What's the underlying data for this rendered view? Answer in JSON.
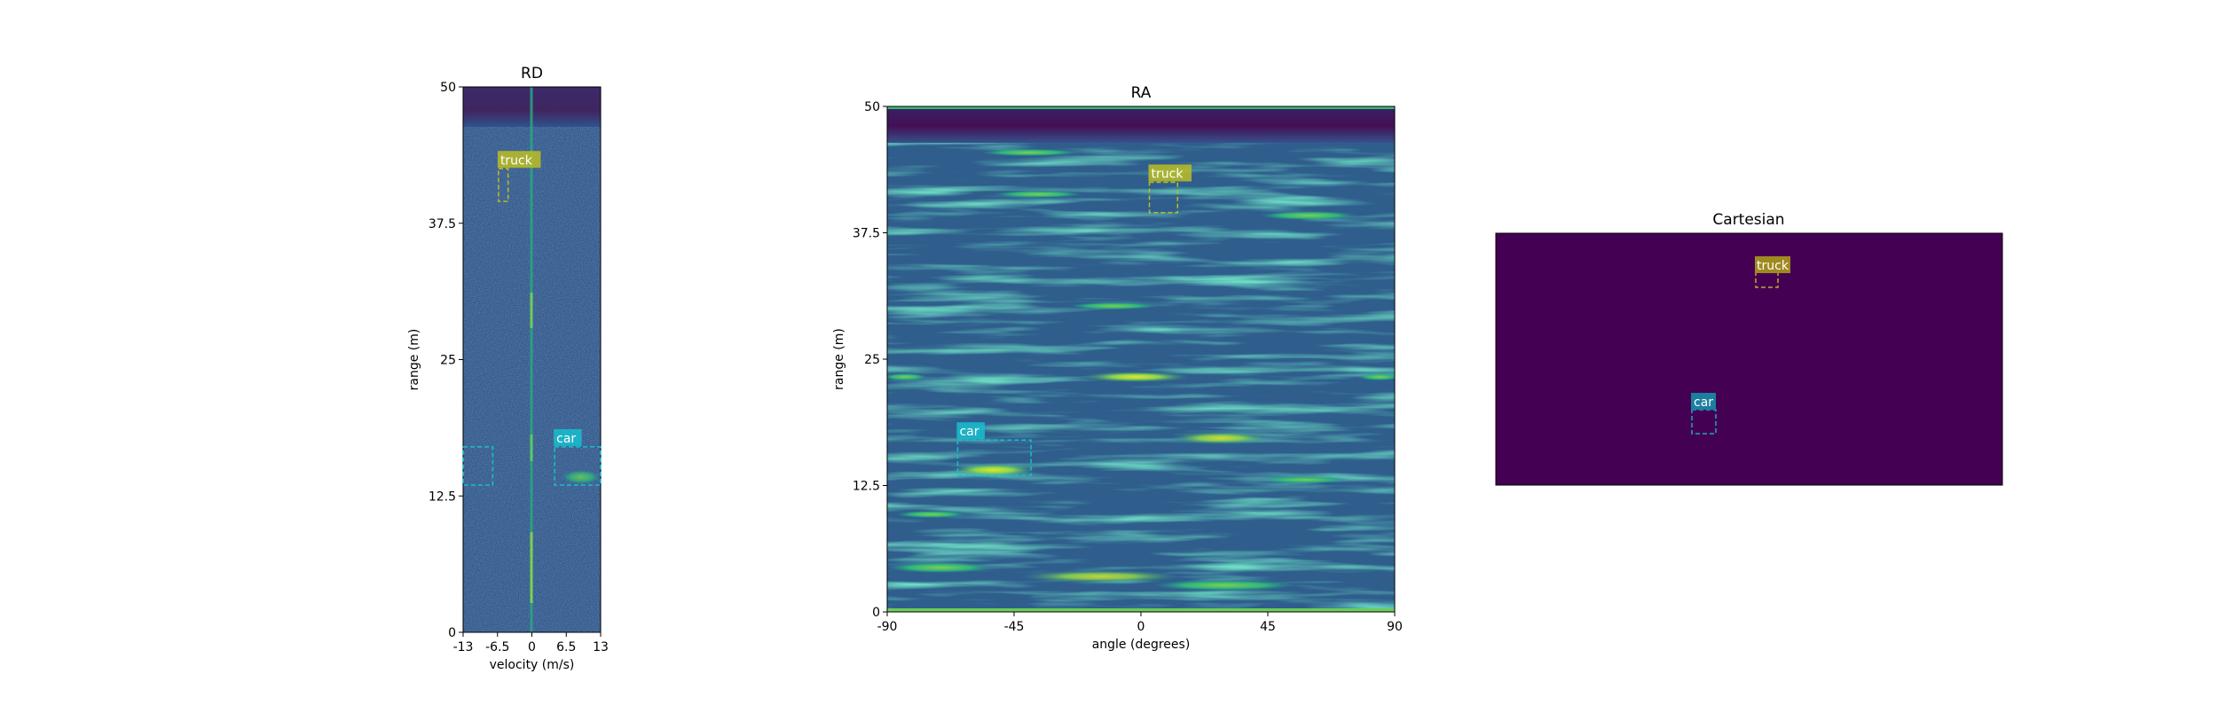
{
  "chart_data": [
    {
      "type": "heatmap",
      "title": "RD",
      "xlabel": "velocity (m/s)",
      "ylabel": "range (m)",
      "xlim": [
        -13,
        13
      ],
      "ylim": [
        0,
        50
      ],
      "xticks": [
        "-13",
        "-6.5",
        "0",
        "6.5",
        "13"
      ],
      "yticks": [
        "0",
        "12.5",
        "25",
        "37.5",
        "50"
      ],
      "annotations": [
        {
          "label": "truck",
          "color": "#bcbd22",
          "box_x": [
            -6.3,
            -4.5
          ],
          "box_y": [
            39.5,
            42.5
          ]
        },
        {
          "label": "car",
          "color": "#17becf",
          "box_x": [
            4.3,
            13
          ],
          "box_y": [
            13.5,
            17.0
          ]
        },
        {
          "label": "",
          "color": "#17becf",
          "box_x": [
            -13,
            -7.4
          ],
          "box_y": [
            13.5,
            17.0
          ]
        }
      ]
    },
    {
      "type": "heatmap",
      "title": "RA",
      "xlabel": "angle (degrees)",
      "ylabel": "range (m)",
      "xlim": [
        -90,
        90
      ],
      "ylim": [
        0,
        50
      ],
      "xticks": [
        "-90",
        "-45",
        "0",
        "45",
        "90"
      ],
      "yticks": [
        "0",
        "12.5",
        "25",
        "37.5",
        "50"
      ],
      "annotations": [
        {
          "label": "truck",
          "color": "#bcbd22",
          "box_x": [
            3,
            13
          ],
          "box_y": [
            39.5,
            42.5
          ]
        },
        {
          "label": "car",
          "color": "#17becf",
          "box_x": [
            -65,
            -39
          ],
          "box_y": [
            13.5,
            17.0
          ]
        }
      ]
    },
    {
      "type": "heatmap",
      "title": "Cartesian",
      "annotations": [
        {
          "label": "truck",
          "color": "#bcbd22"
        },
        {
          "label": "car",
          "color": "#17becf"
        }
      ]
    }
  ]
}
